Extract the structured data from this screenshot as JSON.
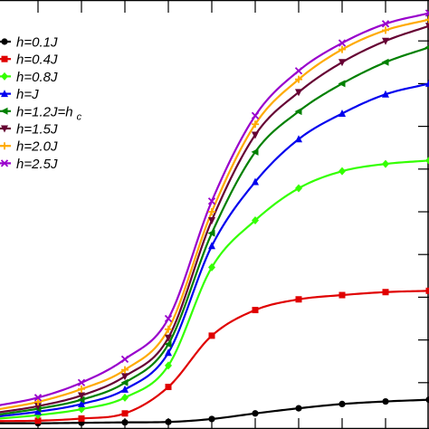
{
  "chart_data": {
    "type": "line",
    "title": "",
    "xlabel": "",
    "ylabel": "",
    "xlim": [
      0,
      100
    ],
    "ylim": [
      0,
      100
    ],
    "grid": false,
    "legend_position": "top-left",
    "series": [
      {
        "name": "h=0.1J",
        "color": "#000000",
        "marker": "circle",
        "x": [
          0,
          10,
          20,
          30,
          40,
          50,
          60,
          70,
          80,
          90,
          100
        ],
        "y": [
          0.5,
          0.5,
          0.6,
          0.7,
          0.8,
          1.5,
          2.8,
          4.0,
          5.0,
          5.6,
          6.0
        ]
      },
      {
        "name": "h=0.4J",
        "color": "#e00000",
        "marker": "square",
        "x": [
          0,
          10,
          20,
          30,
          40,
          50,
          60,
          70,
          80,
          90,
          100
        ],
        "y": [
          1.0,
          1.1,
          1.6,
          2.8,
          9.0,
          21.0,
          27.0,
          29.5,
          30.5,
          31.2,
          31.5
        ]
      },
      {
        "name": "h=0.8J",
        "color": "#33ff00",
        "marker": "diamond",
        "x": [
          0,
          10,
          20,
          30,
          40,
          50,
          60,
          70,
          80,
          90,
          100
        ],
        "y": [
          1.5,
          2.4,
          3.8,
          6.5,
          14.0,
          37.0,
          48.0,
          55.5,
          59.5,
          61.2,
          62.0
        ]
      },
      {
        "name": "h=J",
        "color": "#0000ee",
        "marker": "triangle-up",
        "x": [
          0,
          10,
          20,
          30,
          40,
          50,
          60,
          70,
          80,
          90,
          100
        ],
        "y": [
          2.0,
          3.2,
          5.0,
          8.4,
          17.0,
          42.0,
          57.0,
          67.0,
          73.0,
          77.5,
          80.0
        ]
      },
      {
        "name": "h=1.2J=h c",
        "color": "#008000",
        "marker": "triangle-left",
        "x": [
          0,
          10,
          20,
          30,
          40,
          50,
          60,
          70,
          80,
          90,
          100
        ],
        "y": [
          2.4,
          3.9,
          6.0,
          10.0,
          19.0,
          45.0,
          64.0,
          73.5,
          80.0,
          85.0,
          88.5
        ]
      },
      {
        "name": "h=1.5J",
        "color": "#660033",
        "marker": "triangle-down",
        "x": [
          0,
          10,
          20,
          30,
          40,
          50,
          60,
          70,
          80,
          90,
          100
        ],
        "y": [
          2.9,
          4.5,
          7.0,
          11.5,
          20.5,
          48.0,
          68.0,
          78.0,
          85.0,
          90.0,
          93.5
        ]
      },
      {
        "name": "h=2.0J",
        "color": "#ffaa00",
        "marker": "plus",
        "x": [
          0,
          10,
          20,
          30,
          40,
          50,
          60,
          70,
          80,
          90,
          100
        ],
        "y": [
          3.6,
          5.5,
          8.5,
          13.0,
          22.5,
          50.0,
          70.5,
          81.0,
          88.0,
          92.5,
          95.0
        ]
      },
      {
        "name": "h=2.5J",
        "color": "#9900cc",
        "marker": "x",
        "x": [
          0,
          10,
          20,
          30,
          40,
          50,
          60,
          70,
          80,
          90,
          100
        ],
        "y": [
          4.5,
          6.5,
          10.0,
          15.5,
          25.0,
          52.5,
          72.5,
          83.0,
          89.5,
          94.0,
          96.5
        ]
      }
    ]
  }
}
